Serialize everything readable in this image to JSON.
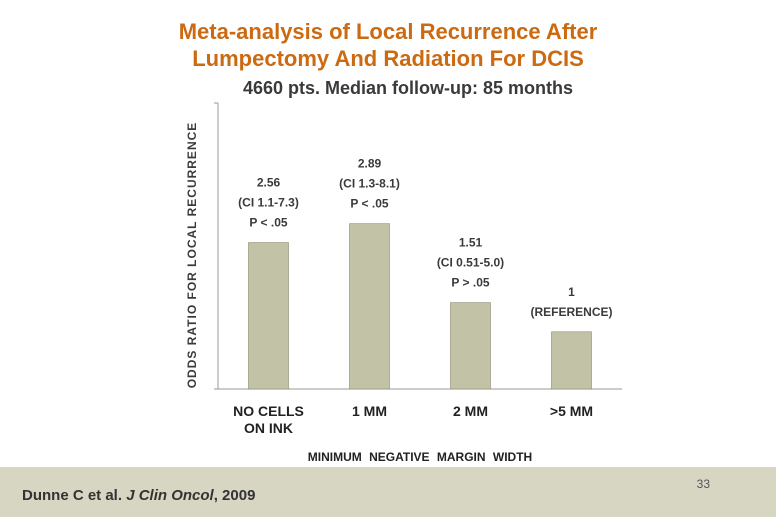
{
  "slide": {
    "title_line1": "Meta-analysis of Local Recurrence After",
    "title_line2": "Lumpectomy And Radiation For DCIS",
    "subtitle": "4660 pts. Median follow-up: 85 months",
    "citation_authors": "Dunne C et al. ",
    "citation_journal": "J Clin Oncol",
    "citation_year": ", 2009",
    "page_number": "33",
    "colors": {
      "title": "#cc6a12",
      "bar": "#c2c2a6",
      "footer": "#d6d6c2"
    }
  },
  "chart_data": {
    "type": "bar",
    "title": "",
    "xlabel": "MINIMUM  NEGATIVE  MARGIN  WIDTH",
    "ylabel": "ODDS RATIO FOR LOCAL RECURRENCE",
    "categories": [
      [
        "NO CELLS",
        "ON INK"
      ],
      [
        "1 MM"
      ],
      [
        "2 MM"
      ],
      [
        ">5 MM"
      ]
    ],
    "values": [
      2.56,
      2.89,
      1.51,
      1
    ],
    "ylim": [
      0,
      5
    ],
    "annotations": [
      [
        "2.56",
        "(CI 1.1-7.3)",
        "P < .05"
      ],
      [
        "2.89",
        "(CI 1.3-8.1)",
        "P < .05"
      ],
      [
        "1.51",
        "(CI 0.51-5.0)",
        "P > .05"
      ],
      [
        "1",
        "(REFERENCE)"
      ]
    ],
    "grid": false
  }
}
